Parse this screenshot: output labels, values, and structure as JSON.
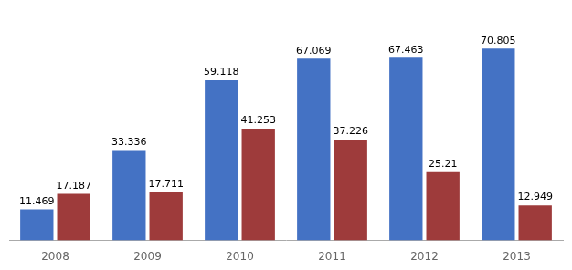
{
  "chart_data": {
    "type": "bar",
    "categories": [
      "2008",
      "2009",
      "2010",
      "2011",
      "2012",
      "2013"
    ],
    "series": [
      {
        "color": "#4472C4",
        "values": [
          11.469,
          33.336,
          59.118,
          67.069,
          67.463,
          70.805
        ]
      },
      {
        "color": "#9E3B3B",
        "values": [
          17.187,
          17.711,
          41.253,
          37.226,
          25.21,
          12.949
        ]
      }
    ],
    "ylim": [
      0,
      82
    ],
    "grid": false,
    "data_labels": true,
    "tick_labels": "x"
  }
}
